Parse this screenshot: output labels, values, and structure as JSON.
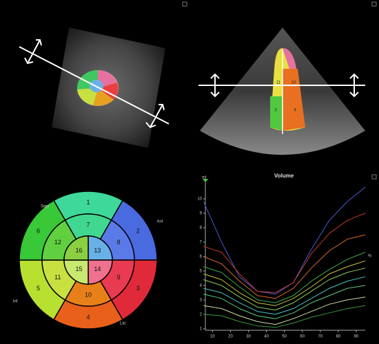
{
  "echo": {
    "view_label": "Volume",
    "segment_labels": [
      "11",
      "10",
      "3",
      "4"
    ]
  },
  "bullseye": {
    "segments": [
      "1",
      "2",
      "3",
      "4",
      "5",
      "6",
      "7",
      "8",
      "9",
      "10",
      "11",
      "12",
      "13",
      "14",
      "15",
      "16"
    ],
    "colors": [
      "#3ed89a",
      "#4a6ae0",
      "#e02a3a",
      "#e8601a",
      "#b8e030",
      "#38c838",
      "#40d890",
      "#5a7ae8",
      "#e83a50",
      "#e8801a",
      "#c8e040",
      "#60d040",
      "#6ab0e8",
      "#f07090",
      "#c8e870",
      "#8ad040"
    ],
    "walls": [
      "Sept",
      "Ant",
      "Inf",
      "Lat"
    ]
  },
  "chart_data": {
    "type": "line",
    "y_unit": "ml",
    "x_unit": "%",
    "x": [
      5,
      15,
      25,
      35,
      45,
      55,
      65,
      75,
      85,
      95
    ],
    "xlim": [
      6,
      95
    ],
    "ylim": [
      0.9,
      10.9
    ],
    "xticks": [
      10,
      20,
      30,
      40,
      50,
      60,
      70,
      80,
      90
    ],
    "yticks": [
      1,
      2,
      3,
      4,
      5,
      6,
      7,
      8,
      9,
      10
    ],
    "series": [
      {
        "color": "#4a5bd8",
        "values": [
          9.8,
          7.0,
          4.6,
          3.6,
          3.4,
          4.2,
          6.5,
          8.5,
          9.8,
          10.8
        ]
      },
      {
        "color": "#c83a2a",
        "values": [
          6.7,
          6.3,
          4.8,
          3.6,
          3.5,
          4.2,
          6.2,
          7.6,
          8.5,
          9.0
        ]
      },
      {
        "color": "#d86a2a",
        "values": [
          6.0,
          5.5,
          4.3,
          3.3,
          3.1,
          3.8,
          5.2,
          6.4,
          7.2,
          7.5
        ]
      },
      {
        "color": "#3ab04a",
        "values": [
          5.3,
          4.9,
          3.9,
          3.0,
          2.8,
          3.3,
          4.3,
          5.1,
          5.8,
          6.3
        ]
      },
      {
        "color": "#c8c83a",
        "values": [
          4.8,
          4.4,
          3.5,
          2.8,
          2.6,
          3.1,
          3.9,
          4.8,
          5.3,
          5.7
        ]
      },
      {
        "color": "#8ad05a",
        "values": [
          4.4,
          4.0,
          3.2,
          2.5,
          2.3,
          2.8,
          3.6,
          4.4,
          4.9,
          5.2
        ]
      },
      {
        "color": "#4ac8c8",
        "values": [
          3.8,
          3.5,
          2.8,
          2.2,
          2.0,
          2.4,
          3.1,
          3.8,
          4.3,
          4.6
        ]
      },
      {
        "color": "#5ad07a",
        "values": [
          3.4,
          3.1,
          2.4,
          1.9,
          1.7,
          2.1,
          2.8,
          3.3,
          3.8,
          4.0
        ]
      },
      {
        "color": "#d0e0a0",
        "values": [
          2.6,
          2.4,
          1.9,
          1.5,
          1.3,
          1.7,
          2.2,
          2.7,
          3.0,
          3.2
        ]
      },
      {
        "color": "#3a9a3a",
        "values": [
          2.0,
          1.9,
          1.5,
          1.2,
          1.1,
          1.4,
          1.8,
          2.1,
          2.4,
          2.6
        ]
      }
    ]
  }
}
